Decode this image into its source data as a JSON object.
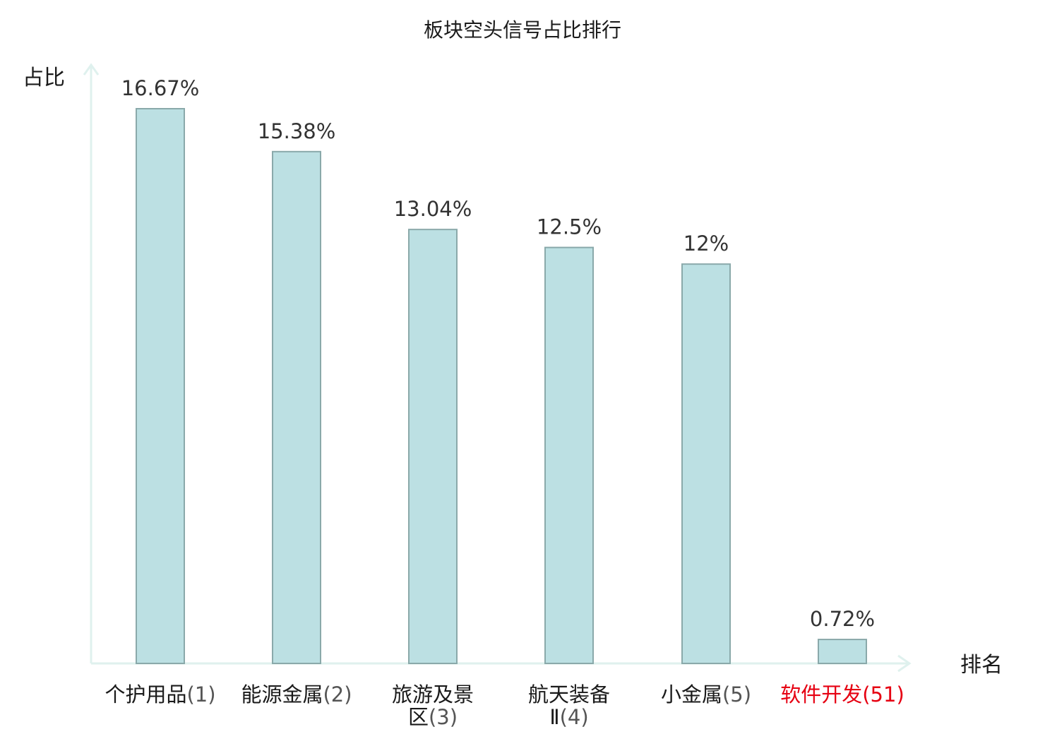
{
  "chart_data": {
    "type": "bar",
    "title": "板块空头信号占比排行",
    "ylabel": "占比",
    "xlabel": "排名",
    "ylim": [
      0,
      16.67
    ],
    "categories": [
      {
        "name": "个护用品",
        "rank": "(1)",
        "highlight": false
      },
      {
        "name": "能源金属",
        "rank": "(2)",
        "highlight": false
      },
      {
        "name": "旅游及景区",
        "rank": "(3)",
        "highlight": false
      },
      {
        "name": "航天装备Ⅱ",
        "rank": "(4)",
        "highlight": false
      },
      {
        "name": "小金属",
        "rank": "(5)",
        "highlight": false
      },
      {
        "name": "软件开发",
        "rank": "(51)",
        "highlight": true
      }
    ],
    "values": [
      16.67,
      15.38,
      13.04,
      12.5,
      12,
      0.72
    ],
    "value_labels": [
      "16.67%",
      "15.38%",
      "13.04%",
      "12.5%",
      "12%",
      "0.72%"
    ],
    "colors": {
      "bar": "#bce0e3",
      "bar_border": "#8aa9aa",
      "axis": "#dff1ee",
      "highlight": "#e60012"
    },
    "grid": false
  }
}
